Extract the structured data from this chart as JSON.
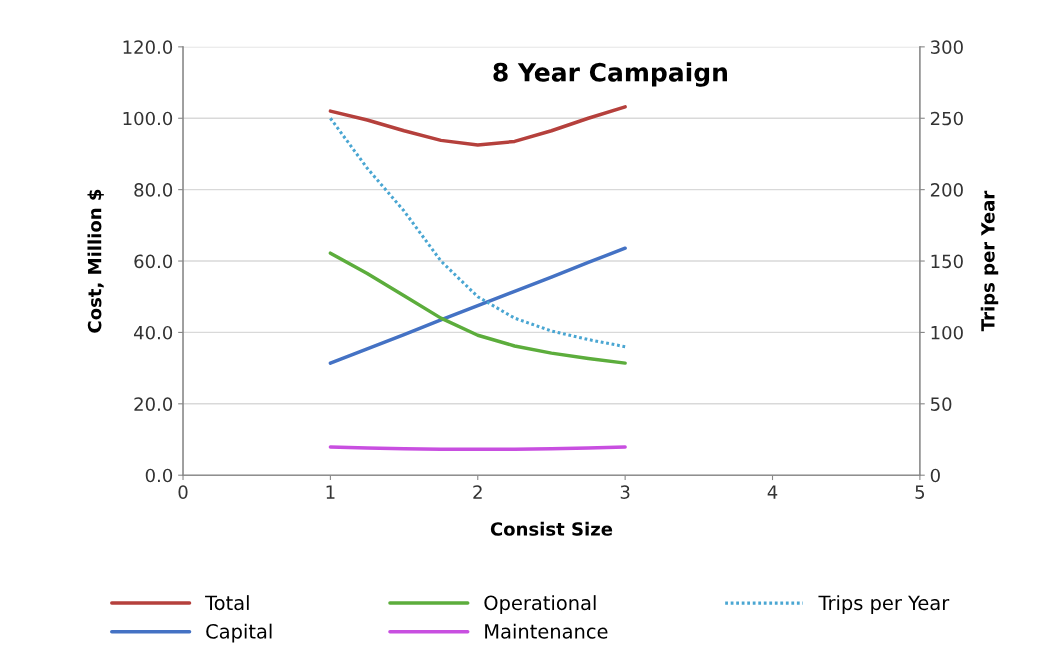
{
  "chart_data": {
    "type": "line",
    "title": "8 Year Campaign",
    "xlabel": "Consist Size",
    "ylabel": "Cost, Million $",
    "y2label": "Trips per Year",
    "x": [
      1,
      1.25,
      1.5,
      1.75,
      2,
      2.25,
      2.5,
      2.75,
      3
    ],
    "series": [
      {
        "name": "Total",
        "color": "#b5403c",
        "values": [
          102.0,
          99.5,
          96.5,
          93.8,
          92.5,
          93.5,
          96.5,
          100.0,
          103.2
        ]
      },
      {
        "name": "Capital",
        "color": "#4472c4",
        "values": [
          31.4,
          35.4,
          39.4,
          43.5,
          47.5,
          51.5,
          55.5,
          59.6,
          63.6
        ]
      },
      {
        "name": "Operational",
        "color": "#5cad3c",
        "values": [
          62.2,
          56.5,
          50.3,
          44.0,
          39.2,
          36.2,
          34.2,
          32.7,
          31.4
        ]
      },
      {
        "name": "Maintenance",
        "color": "#c84fe0",
        "values": [
          7.9,
          7.6,
          7.4,
          7.3,
          7.3,
          7.3,
          7.4,
          7.6,
          7.9
        ]
      },
      {
        "name": "Trips per Year",
        "color": "#4aa6d2",
        "values": [
          250,
          215,
          185,
          150,
          125,
          110,
          101,
          95,
          90
        ],
        "axis": "y2",
        "line_style": "dotted"
      }
    ],
    "xlim": [
      0,
      5
    ],
    "xticks": [
      0,
      1,
      2,
      3,
      4,
      5
    ],
    "ylim": [
      0,
      120
    ],
    "yticks": [
      {
        "value": 0,
        "label": "0.0"
      },
      {
        "value": 20,
        "label": "20.0"
      },
      {
        "value": 40,
        "label": "40.0"
      },
      {
        "value": 60,
        "label": "60.0"
      },
      {
        "value": 80,
        "label": "80.0"
      },
      {
        "value": 100,
        "label": "100.0"
      },
      {
        "value": 120,
        "label": "120.0"
      }
    ],
    "y2lim": [
      0,
      300
    ],
    "y2ticks": [
      0,
      50,
      100,
      150,
      200,
      250,
      300
    ],
    "grid": "y",
    "legend": "bottom",
    "marker": "none"
  }
}
